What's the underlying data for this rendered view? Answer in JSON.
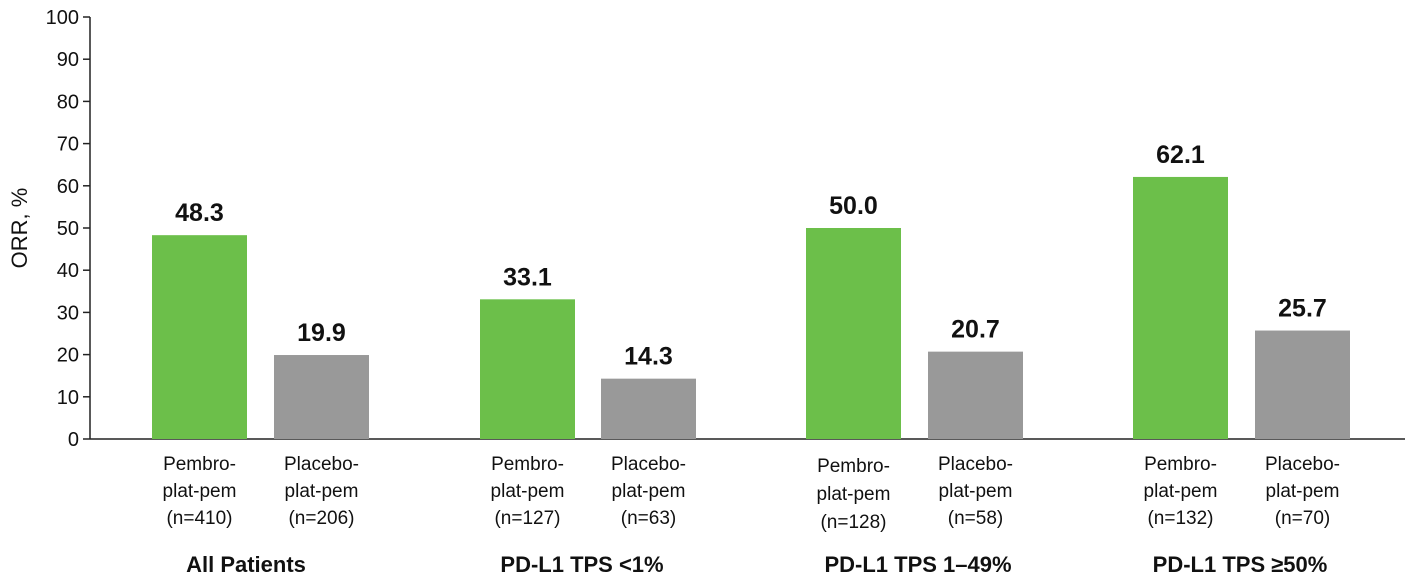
{
  "chart_data": {
    "type": "bar",
    "ylabel": "ORR, %",
    "ylim": [
      0,
      100
    ],
    "yticks": [
      0,
      10,
      20,
      30,
      40,
      50,
      60,
      70,
      80,
      90,
      100
    ],
    "grid": false,
    "legend": "none",
    "categories": [
      "All Patients",
      "PD-L1 TPS <1%",
      "PD-L1 TPS 1–49%",
      "PD-L1 TPS ≥50%"
    ],
    "series": [
      {
        "color": "#6cbf4a",
        "values": [
          48.3,
          33.1,
          50.0,
          62.1
        ],
        "value_labels": [
          "48.3",
          "33.1",
          "50.0",
          "62.1"
        ],
        "bar_labels": [
          [
            "Pembro-",
            "plat-pem",
            "(n=410)"
          ],
          [
            "Pembro-",
            "plat-pem",
            "(n=127)"
          ],
          [
            "Pembro-",
            "plat-pem",
            "(n=128)"
          ],
          [
            "Pembro-",
            "plat-pem",
            "(n=132)"
          ]
        ]
      },
      {
        "color": "#999999",
        "values": [
          19.9,
          14.3,
          20.7,
          25.7
        ],
        "value_labels": [
          "19.9",
          "14.3",
          "20.7",
          "25.7"
        ],
        "bar_labels": [
          [
            "Placebo-",
            "plat-pem",
            "(n=206)"
          ],
          [
            "Placebo-",
            "plat-pem",
            "(n=63)"
          ],
          [
            "Placebo-",
            "plat-pem",
            "(n=58)"
          ],
          [
            "Placebo-",
            "plat-pem",
            "(n=70)"
          ]
        ]
      }
    ]
  }
}
